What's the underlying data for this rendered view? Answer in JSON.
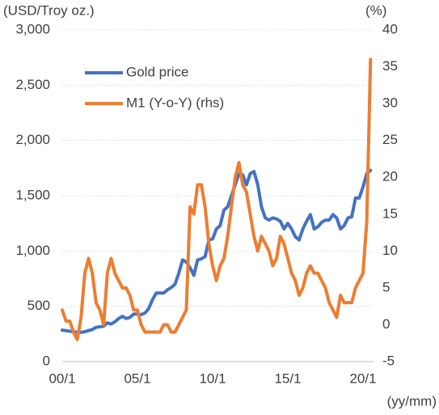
{
  "chart_data": {
    "type": "line",
    "y_label": "(USD/Troy oz.)",
    "y2_label": "(%)",
    "x_label": "(yy/mm)",
    "categories": [
      "00/1",
      null,
      null,
      null,
      null,
      null,
      null,
      null,
      null,
      null,
      null,
      null,
      null,
      null,
      null,
      null,
      null,
      null,
      null,
      null,
      "05/1",
      null,
      null,
      null,
      null,
      null,
      null,
      null,
      null,
      null,
      null,
      null,
      null,
      null,
      null,
      null,
      null,
      null,
      null,
      null,
      "10/1",
      null,
      null,
      null,
      null,
      null,
      null,
      null,
      null,
      null,
      null,
      null,
      null,
      null,
      null,
      null,
      null,
      null,
      null,
      null,
      "15/1",
      null,
      null,
      null,
      null,
      null,
      null,
      null,
      null,
      null,
      null,
      null,
      null,
      null,
      null,
      null,
      null,
      null,
      null,
      null,
      "20/1",
      null,
      null
    ],
    "series": [
      {
        "name": "Gold price",
        "color": "#4472c4",
        "axis": "y",
        "values": [
          285,
          280,
          275,
          270,
          265,
          265,
          270,
          280,
          290,
          310,
          315,
          320,
          350,
          340,
          360,
          390,
          410,
          390,
          400,
          430,
          430,
          425,
          440,
          480,
          560,
          620,
          620,
          620,
          650,
          670,
          700,
          800,
          920,
          900,
          850,
          780,
          920,
          930,
          950,
          1100,
          1110,
          1200,
          1230,
          1370,
          1400,
          1500,
          1600,
          1700,
          1690,
          1600,
          1700,
          1720,
          1600,
          1400,
          1300,
          1280,
          1300,
          1290,
          1270,
          1200,
          1250,
          1200,
          1130,
          1100,
          1200,
          1270,
          1330,
          1200,
          1220,
          1260,
          1280,
          1280,
          1330,
          1300,
          1200,
          1230,
          1300,
          1310,
          1480,
          1480,
          1580,
          1700,
          1730
        ]
      },
      {
        "name": "M1 (Y-o-Y) (rhs)",
        "color": "#ed7d31",
        "axis": "y2",
        "values": [
          2,
          0.5,
          0.5,
          -1,
          -2,
          1,
          7,
          9,
          7,
          3,
          2,
          0,
          7,
          9,
          7,
          6,
          5,
          5,
          4,
          2,
          2,
          0,
          -1,
          -1,
          -1,
          -1,
          -1,
          0,
          0,
          -1,
          -1,
          0,
          1,
          2,
          16,
          15,
          19,
          19,
          16,
          11,
          8,
          6,
          8,
          9,
          12,
          16,
          20,
          22,
          19,
          18,
          15,
          12,
          10,
          12,
          11,
          10,
          8,
          9,
          12,
          11,
          9,
          7,
          6,
          4,
          5,
          7,
          8,
          7,
          7,
          6,
          5,
          3,
          2,
          1,
          4,
          3,
          3,
          3,
          5,
          6,
          7,
          14,
          36
        ]
      }
    ],
    "ylim": [
      0,
      3000
    ],
    "yticks": [
      0,
      500,
      {
        "value": 1000,
        "label": "1,000"
      },
      {
        "value": 1500,
        "label": "1,500"
      },
      {
        "value": 2000,
        "label": "2,000"
      },
      {
        "value": 2500,
        "label": "2,500"
      },
      {
        "value": 3000,
        "label": "3,000"
      }
    ],
    "y2lim": [
      -5,
      40
    ],
    "y2ticks": [
      -5,
      0,
      5,
      10,
      15,
      20,
      25,
      30,
      35,
      40
    ],
    "grid": true,
    "legend": "upper left"
  }
}
